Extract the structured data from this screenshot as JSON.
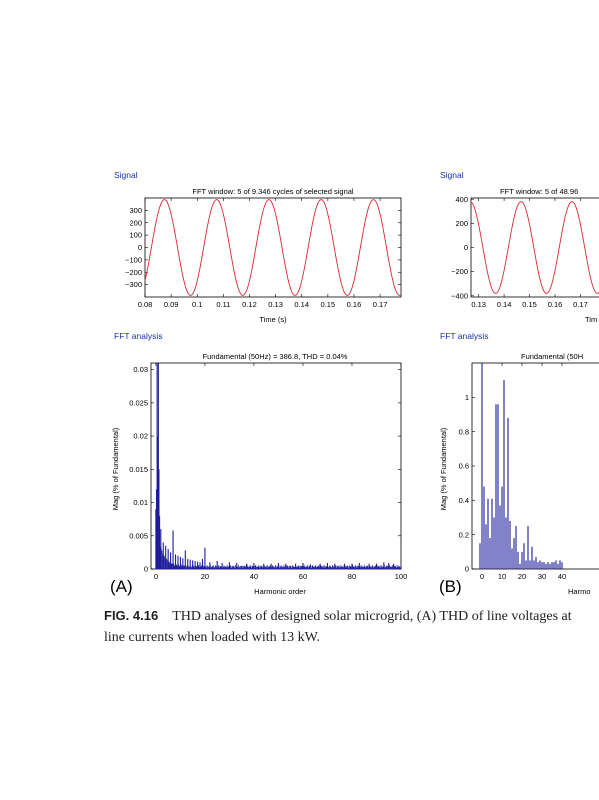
{
  "panels": [
    {
      "letter": "(A)",
      "signal_header": "Signal",
      "fft_header": "FFT analysis"
    },
    {
      "letter": "(B)",
      "signal_header": "Signal",
      "fft_header": "FFT analysis"
    }
  ],
  "caption": {
    "label": "FIG. 4.16",
    "text": "THD analyses of designed solar microgrid, (A) THD of line voltages at",
    "text2": "line currents when loaded with 13 kW."
  },
  "colors": {
    "signal_line": "#d62a36",
    "fft_bars": "#1c1c9c",
    "header_blue": "#1a2ea8"
  },
  "chart_data": [
    {
      "type": "line",
      "title": "FFT window: 5 of 9.346 cycles of selected signal",
      "xlabel": "Time (s)",
      "ylabel": "",
      "xlim": [
        0.08,
        0.178
      ],
      "ylim": [
        -400,
        400
      ],
      "xticks": [
        0.08,
        0.09,
        0.1,
        0.11,
        0.12,
        0.13,
        0.14,
        0.15,
        0.16,
        0.17
      ],
      "xtick_labels": [
        "0.08",
        "0.09",
        "0.1",
        "0.11",
        "0.12",
        "0.13",
        "0.14",
        "0.15",
        "0.16",
        "0.17"
      ],
      "yticks": [
        -300,
        -200,
        -100,
        0,
        100,
        200,
        300
      ],
      "ytick_labels": [
        "−300",
        "−200",
        "−100",
        "0",
        "100",
        "200",
        "300"
      ],
      "series": [
        {
          "amplitude": 386.8,
          "frequency_hz": 50,
          "phase_deg": -44
        }
      ]
    },
    {
      "type": "bar",
      "title": "Fundamental (50Hz) = 386.8, THD = 0.04%",
      "xlabel": "Harmonic order",
      "ylabel": "Mag (% of Fundamental)",
      "xlim": [
        -2,
        100
      ],
      "ylim": [
        0,
        0.031
      ],
      "xticks": [
        0,
        20,
        40,
        60,
        80,
        100
      ],
      "xtick_labels": [
        "0",
        "20",
        "40",
        "60",
        "80",
        "100"
      ],
      "yticks": [
        0,
        0.005,
        0.01,
        0.015,
        0.02,
        0.025,
        0.03
      ],
      "ytick_labels": [
        "0",
        "0.005",
        "0.01",
        "0.015",
        "0.02",
        "0.025",
        "0.03"
      ],
      "harmonic_step": 0.25,
      "bars_order": [
        0,
        0.25,
        0.5,
        0.75,
        1,
        1.25,
        1.5,
        2,
        3,
        4,
        5,
        6,
        7,
        8,
        9,
        10,
        11,
        12,
        13,
        14,
        15,
        16,
        17,
        18,
        19,
        20,
        22,
        25,
        27,
        30,
        33,
        37,
        40,
        44,
        47,
        50,
        53,
        57,
        60,
        63,
        67,
        70,
        73,
        77,
        80,
        83,
        87,
        90,
        93,
        95,
        97
      ],
      "bars_value": [
        0.009,
        0.012,
        0.031,
        0.02,
        0.031,
        0.015,
        0.008,
        0.006,
        0.004,
        0.0035,
        0.003,
        0.0025,
        0.0058,
        0.0022,
        0.002,
        0.0018,
        0.0016,
        0.0028,
        0.0015,
        0.0014,
        0.0013,
        0.0012,
        0.0011,
        0.001,
        0.0015,
        0.0032,
        0.001,
        0.0012,
        0.0009,
        0.001,
        0.0009,
        0.0008,
        0.0009,
        0.0008,
        0.0008,
        0.0009,
        0.0008,
        0.0008,
        0.0009,
        0.0007,
        0.0008,
        0.0009,
        0.0008,
        0.0008,
        0.0008,
        0.0009,
        0.0008,
        0.0008,
        0.001,
        0.0009,
        0.0008
      ],
      "baseline_floor": 0.0004
    },
    {
      "type": "line",
      "title": "FFT window: 5 of 48.96",
      "xlabel": "Tim",
      "ylabel": "",
      "xlim": [
        0.127,
        0.182
      ],
      "ylim": [
        -410,
        410
      ],
      "xticks": [
        0.13,
        0.14,
        0.15,
        0.16,
        0.17
      ],
      "xtick_labels": [
        "0.13",
        "0.14",
        "0.15",
        "0.16",
        "0.17"
      ],
      "yticks": [
        -400,
        -200,
        0,
        200,
        400
      ],
      "ytick_labels": [
        "−400",
        "−200",
        "0",
        "200",
        "400"
      ],
      "series": [
        {
          "amplitude": 380,
          "frequency_hz": 50,
          "phase_deg": -30
        }
      ]
    },
    {
      "type": "bar",
      "title": "Fundamental (50H",
      "xlabel": "Harmo",
      "ylabel": "Mag (% of Fundamental)",
      "xlim": [
        -5,
        65
      ],
      "ylim": [
        0,
        1.2
      ],
      "xticks": [
        0,
        10,
        20,
        30,
        40
      ],
      "xtick_labels": [
        "0",
        "10",
        "20",
        "30",
        "40"
      ],
      "yticks": [
        0,
        0.2,
        0.4,
        0.6,
        0.8,
        1
      ],
      "ytick_labels": [
        "0",
        "0.2",
        "0.4",
        "0.6",
        "0.8",
        "1"
      ],
      "bars_order": [
        -1,
        0,
        1,
        2,
        3,
        4,
        5,
        6,
        7,
        8,
        9,
        10,
        11,
        12,
        13,
        14,
        15,
        16,
        17,
        18,
        19,
        20,
        21,
        22,
        23,
        24,
        25,
        26,
        27,
        28,
        29,
        30,
        31,
        32,
        33,
        34,
        35,
        36,
        37,
        38,
        39,
        40
      ],
      "bars_value": [
        0.15,
        1.2,
        0.48,
        0.26,
        0.41,
        0.18,
        0.41,
        0.3,
        0.96,
        0.96,
        0.37,
        0.48,
        1.1,
        0.3,
        0.88,
        0.28,
        0.12,
        0.18,
        0.25,
        0.1,
        0.03,
        0.1,
        0.15,
        0.05,
        0.25,
        0.05,
        0.13,
        0.05,
        0.07,
        0.04,
        0.05,
        0.04,
        0.04,
        0.03,
        0.04,
        0.03,
        0.04,
        0.04,
        0.05,
        0.03,
        0.05,
        0.04
      ]
    }
  ]
}
